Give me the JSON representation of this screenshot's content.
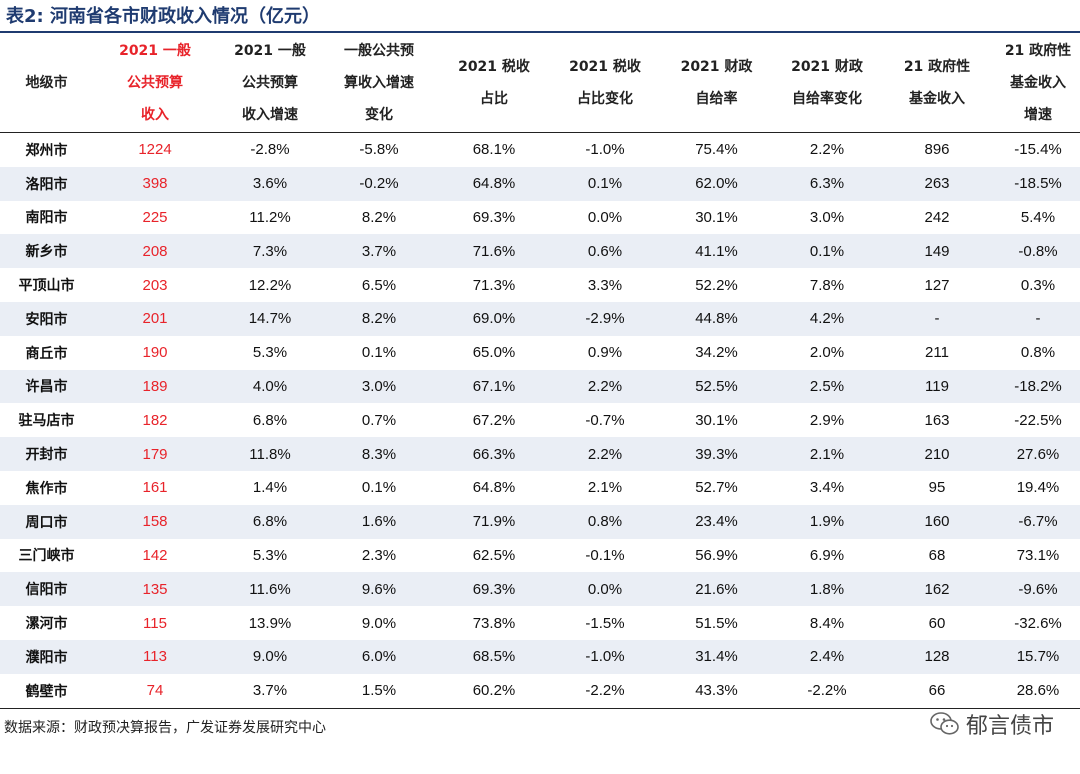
{
  "title": "表2:  河南省各市财政收入情况（亿元）",
  "headers": [
    {
      "lines": [
        "地级市"
      ],
      "highlight": false
    },
    {
      "lines": [
        "2021 一般",
        "公共预算",
        "收入"
      ],
      "highlight": true
    },
    {
      "lines": [
        "2021 一般",
        "公共预算",
        "收入增速"
      ],
      "highlight": false
    },
    {
      "lines": [
        "一般公共预",
        "算收入增速",
        "变化"
      ],
      "highlight": false
    },
    {
      "lines": [
        "2021 税收",
        "占比"
      ],
      "highlight": false
    },
    {
      "lines": [
        "2021 税收",
        "占比变化"
      ],
      "highlight": false
    },
    {
      "lines": [
        "2021 财政",
        "自给率"
      ],
      "highlight": false
    },
    {
      "lines": [
        "2021 财政",
        "自给率变化"
      ],
      "highlight": false
    },
    {
      "lines": [
        "21 政府性",
        "基金收入"
      ],
      "highlight": false
    },
    {
      "lines": [
        "21 政府性",
        "基金收入",
        "增速"
      ],
      "highlight": false
    }
  ],
  "rows": [
    [
      "郑州市",
      "1224",
      "-2.8%",
      "-5.8%",
      "68.1%",
      "-1.0%",
      "75.4%",
      "2.2%",
      "896",
      "-15.4%"
    ],
    [
      "洛阳市",
      "398",
      "3.6%",
      "-0.2%",
      "64.8%",
      "0.1%",
      "62.0%",
      "6.3%",
      "263",
      "-18.5%"
    ],
    [
      "南阳市",
      "225",
      "11.2%",
      "8.2%",
      "69.3%",
      "0.0%",
      "30.1%",
      "3.0%",
      "242",
      "5.4%"
    ],
    [
      "新乡市",
      "208",
      "7.3%",
      "3.7%",
      "71.6%",
      "0.6%",
      "41.1%",
      "0.1%",
      "149",
      "-0.8%"
    ],
    [
      "平顶山市",
      "203",
      "12.2%",
      "6.5%",
      "71.3%",
      "3.3%",
      "52.2%",
      "7.8%",
      "127",
      "0.3%"
    ],
    [
      "安阳市",
      "201",
      "14.7%",
      "8.2%",
      "69.0%",
      "-2.9%",
      "44.8%",
      "4.2%",
      "-",
      "-"
    ],
    [
      "商丘市",
      "190",
      "5.3%",
      "0.1%",
      "65.0%",
      "0.9%",
      "34.2%",
      "2.0%",
      "211",
      "0.8%"
    ],
    [
      "许昌市",
      "189",
      "4.0%",
      "3.0%",
      "67.1%",
      "2.2%",
      "52.5%",
      "2.5%",
      "119",
      "-18.2%"
    ],
    [
      "驻马店市",
      "182",
      "6.8%",
      "0.7%",
      "67.2%",
      "-0.7%",
      "30.1%",
      "2.9%",
      "163",
      "-22.5%"
    ],
    [
      "开封市",
      "179",
      "11.8%",
      "8.3%",
      "66.3%",
      "2.2%",
      "39.3%",
      "2.1%",
      "210",
      "27.6%"
    ],
    [
      "焦作市",
      "161",
      "1.4%",
      "0.1%",
      "64.8%",
      "2.1%",
      "52.7%",
      "3.4%",
      "95",
      "19.4%"
    ],
    [
      "周口市",
      "158",
      "6.8%",
      "1.6%",
      "71.9%",
      "0.8%",
      "23.4%",
      "1.9%",
      "160",
      "-6.7%"
    ],
    [
      "三门峡市",
      "142",
      "5.3%",
      "2.3%",
      "62.5%",
      "-0.1%",
      "56.9%",
      "6.9%",
      "68",
      "73.1%"
    ],
    [
      "信阳市",
      "135",
      "11.6%",
      "9.6%",
      "69.3%",
      "0.0%",
      "21.6%",
      "1.8%",
      "162",
      "-9.6%"
    ],
    [
      "漯河市",
      "115",
      "13.9%",
      "9.0%",
      "73.8%",
      "-1.5%",
      "51.5%",
      "8.4%",
      "60",
      "-32.6%"
    ],
    [
      "濮阳市",
      "113",
      "9.0%",
      "6.0%",
      "68.5%",
      "-1.0%",
      "31.4%",
      "2.4%",
      "128",
      "15.7%"
    ],
    [
      "鹤壁市",
      "74",
      "3.7%",
      "1.5%",
      "60.2%",
      "-2.2%",
      "43.3%",
      "-2.2%",
      "66",
      "28.6%"
    ]
  ],
  "source": "数据来源：财政预决算报告，广发证券发展研究中心",
  "brand": {
    "name": "郁言债市",
    "icon": "wechat-icon"
  },
  "colors": {
    "title": "#1f3b70",
    "highlight": "#e8232a",
    "band": "#eaeef5"
  }
}
